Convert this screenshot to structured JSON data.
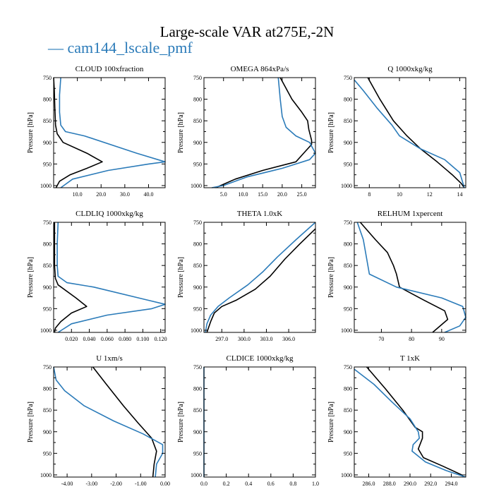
{
  "title": "Large-scale VAR at275E,-2N",
  "legend": {
    "prefix": "— ",
    "label": "cam144_lscale_pmf",
    "color": "#2B7BB9"
  },
  "colors": {
    "series_black": "#000000",
    "series_blue": "#2B7BB9"
  },
  "chart_data": [
    {
      "type": "line",
      "title": "CLOUD  100xfraction",
      "ylabel": "Pressure [hPa]",
      "xlim": [
        0,
        47
      ],
      "ylim": [
        1005,
        750
      ],
      "xticks": [
        10,
        20,
        30,
        40
      ],
      "xticklabels": [
        "10.0",
        "20.0",
        "30.0",
        "40.0"
      ],
      "yticks": [
        750,
        800,
        850,
        900,
        950,
        1000
      ],
      "yticklabels": [
        "750",
        "800",
        "850",
        "900",
        "950",
        "1000"
      ],
      "series": [
        {
          "color": "#000000",
          "points": [
            [
              0,
              750
            ],
            [
              0.3,
              780
            ],
            [
              0.5,
              820
            ],
            [
              0.8,
              860
            ],
            [
              1.5,
              880
            ],
            [
              4,
              900
            ],
            [
              14,
              925
            ],
            [
              20.5,
              945
            ],
            [
              14,
              960
            ],
            [
              7,
              975
            ],
            [
              2.5,
              990
            ],
            [
              1,
              1005
            ]
          ]
        },
        {
          "color": "#2B7BB9",
          "points": [
            [
              3,
              750
            ],
            [
              2.5,
              790
            ],
            [
              2.5,
              830
            ],
            [
              3,
              860
            ],
            [
              5,
              875
            ],
            [
              13,
              885
            ],
            [
              35,
              925
            ],
            [
              47,
              945
            ],
            [
              40,
              950
            ],
            [
              23,
              965
            ],
            [
              8,
              985
            ],
            [
              3,
              1005
            ]
          ]
        }
      ]
    },
    {
      "type": "line",
      "title": "OMEGA  864xPa/s",
      "ylabel": "Pressure [hPa]",
      "xlim": [
        0,
        28.5
      ],
      "ylim": [
        1005,
        750
      ],
      "xticks": [
        5,
        10,
        15,
        20,
        25
      ],
      "xticklabels": [
        "5.0",
        "10.0",
        "15.0",
        "20.0",
        "25.0"
      ],
      "yticks": [
        750,
        800,
        850,
        900,
        950,
        1000
      ],
      "yticklabels": [
        "750",
        "800",
        "850",
        "900",
        "950",
        "1000"
      ],
      "series": [
        {
          "color": "#000000",
          "points": [
            [
              19.5,
              750
            ],
            [
              21,
              775
            ],
            [
              22.5,
              800
            ],
            [
              25,
              830
            ],
            [
              26.5,
              850
            ],
            [
              26.8,
              870
            ],
            [
              27.5,
              895
            ],
            [
              27.5,
              905
            ],
            [
              26,
              920
            ],
            [
              23.5,
              945
            ],
            [
              15,
              965
            ],
            [
              8,
              985
            ],
            [
              3,
              1005
            ]
          ]
        },
        {
          "color": "#2B7BB9",
          "points": [
            [
              19,
              750
            ],
            [
              19.5,
              800
            ],
            [
              20,
              840
            ],
            [
              21,
              865
            ],
            [
              23.5,
              885
            ],
            [
              27,
              900
            ],
            [
              28.5,
              925
            ],
            [
              27,
              940
            ],
            [
              20,
              960
            ],
            [
              11,
              980
            ],
            [
              5,
              1000
            ],
            [
              2,
              1005
            ]
          ]
        }
      ]
    },
    {
      "type": "line",
      "title": "Q  1000xkg/kg",
      "ylabel": "Pressure [hPa]",
      "xlim": [
        7,
        14.4
      ],
      "ylim": [
        1005,
        750
      ],
      "xticks": [
        8,
        10,
        12,
        14
      ],
      "xticklabels": [
        "8",
        "10",
        "12",
        "14"
      ],
      "yticks": [
        750,
        800,
        850,
        900,
        950,
        1000
      ],
      "yticklabels": [
        "750",
        "800",
        "850",
        "900",
        "950",
        "1000"
      ],
      "series": [
        {
          "color": "#000000",
          "points": [
            [
              7.9,
              750
            ],
            [
              8.7,
              800
            ],
            [
              9.6,
              850
            ],
            [
              10.5,
              885
            ],
            [
              11.4,
              915
            ],
            [
              12.5,
              945
            ],
            [
              13.5,
              975
            ],
            [
              14.1,
              995
            ],
            [
              14.3,
              1005
            ]
          ]
        },
        {
          "color": "#2B7BB9",
          "points": [
            [
              7,
              755
            ],
            [
              7.6,
              780
            ],
            [
              8.5,
              820
            ],
            [
              9.5,
              860
            ],
            [
              10,
              885
            ],
            [
              11.4,
              915
            ],
            [
              13,
              940
            ],
            [
              14,
              970
            ],
            [
              14.3,
              1005
            ]
          ]
        }
      ]
    },
    {
      "type": "line",
      "title": "CLDLIQ  1000xkg/kg",
      "ylabel": "Pressure [hPa]",
      "xlim": [
        0,
        0.125
      ],
      "ylim": [
        1005,
        750
      ],
      "xticks": [
        0.02,
        0.04,
        0.06,
        0.08,
        0.1,
        0.12
      ],
      "xticklabels": [
        "0.020",
        "0.040",
        "0.060",
        "0.080",
        "0.100",
        "0.120"
      ],
      "yticks": [
        750,
        800,
        850,
        900,
        950,
        1000
      ],
      "yticklabels": [
        "750",
        "800",
        "850",
        "900",
        "950",
        "1000"
      ],
      "series": [
        {
          "color": "#000000",
          "points": [
            [
              0.001,
              750
            ],
            [
              0.001,
              800
            ],
            [
              0.001,
              850
            ],
            [
              0.002,
              880
            ],
            [
              0.005,
              895
            ],
            [
              0.025,
              925
            ],
            [
              0.037,
              945
            ],
            [
              0.02,
              960
            ],
            [
              0.008,
              980
            ],
            [
              0.002,
              995
            ],
            [
              0.001,
              1005
            ]
          ]
        },
        {
          "color": "#2B7BB9",
          "points": [
            [
              0.005,
              750
            ],
            [
              0.004,
              800
            ],
            [
              0.004,
              850
            ],
            [
              0.005,
              875
            ],
            [
              0.015,
              890
            ],
            [
              0.045,
              900
            ],
            [
              0.105,
              930
            ],
            [
              0.125,
              940
            ],
            [
              0.11,
              950
            ],
            [
              0.06,
              965
            ],
            [
              0.02,
              985
            ],
            [
              0.005,
              1005
            ]
          ]
        }
      ]
    },
    {
      "type": "line",
      "title": "THETA  1.0xK",
      "ylabel": "Pressure [hPa]",
      "xlim": [
        294.6,
        309.6
      ],
      "ylim": [
        1005,
        750
      ],
      "xticks": [
        297,
        300,
        303,
        306
      ],
      "xticklabels": [
        "297.0",
        "300.0",
        "303.0",
        "306.0"
      ],
      "yticks": [
        750,
        800,
        850,
        900,
        950,
        1000
      ],
      "yticklabels": [
        "750",
        "800",
        "850",
        "900",
        "950",
        "1000"
      ],
      "series": [
        {
          "color": "#000000",
          "points": [
            [
              309.6,
              765
            ],
            [
              307.5,
              800
            ],
            [
              305.5,
              835
            ],
            [
              303.5,
              875
            ],
            [
              301.5,
              905
            ],
            [
              299,
              930
            ],
            [
              297,
              945
            ],
            [
              296,
              960
            ],
            [
              295.5,
              980
            ],
            [
              295,
              1005
            ]
          ]
        },
        {
          "color": "#2B7BB9",
          "points": [
            [
              309.6,
              750
            ],
            [
              307,
              790
            ],
            [
              304.5,
              830
            ],
            [
              302.5,
              865
            ],
            [
              300.5,
              895
            ],
            [
              298,
              925
            ],
            [
              296.5,
              945
            ],
            [
              295.5,
              965
            ],
            [
              295,
              985
            ],
            [
              294.8,
              1005
            ]
          ]
        }
      ]
    },
    {
      "type": "line",
      "title": "RELHUM  1xpercent",
      "ylabel": "Pressure [hPa]",
      "xlim": [
        61,
        98
      ],
      "ylim": [
        1005,
        750
      ],
      "xticks": [
        70,
        80,
        90
      ],
      "xticklabels": [
        "70",
        "80",
        "90"
      ],
      "yticks": [
        750,
        800,
        850,
        900,
        950,
        1000
      ],
      "yticklabels": [
        "750",
        "800",
        "850",
        "900",
        "950",
        "1000"
      ],
      "series": [
        {
          "color": "#000000",
          "points": [
            [
              63,
              750
            ],
            [
              68,
              790
            ],
            [
              72,
              820
            ],
            [
              74,
              850
            ],
            [
              75,
              870
            ],
            [
              76,
              900
            ],
            [
              84,
              930
            ],
            [
              91,
              955
            ],
            [
              92,
              975
            ],
            [
              87,
              1005
            ]
          ]
        },
        {
          "color": "#2B7BB9",
          "points": [
            [
              62,
              750
            ],
            [
              64,
              790
            ],
            [
              65,
              830
            ],
            [
              66,
              870
            ],
            [
              75,
              900
            ],
            [
              90,
              925
            ],
            [
              97,
              945
            ],
            [
              98,
              970
            ],
            [
              96,
              990
            ],
            [
              91,
              1005
            ]
          ]
        }
      ]
    },
    {
      "type": "line",
      "title": "U  1xm/s",
      "ylabel": "Pressure [hPa]",
      "xlim": [
        -4.55,
        0
      ],
      "ylim": [
        1005,
        750
      ],
      "xticks": [
        -4,
        -3,
        -2,
        -1,
        0
      ],
      "xticklabels": [
        "-4.00",
        "-3.00",
        "-2.00",
        "-1.00",
        "0.00"
      ],
      "yticks": [
        750,
        800,
        850,
        900,
        950,
        1000
      ],
      "yticklabels": [
        "750",
        "800",
        "850",
        "900",
        "950",
        "1000"
      ],
      "series": [
        {
          "color": "#000000",
          "points": [
            [
              -2.95,
              750
            ],
            [
              -2.4,
              790
            ],
            [
              -1.7,
              840
            ],
            [
              -1.1,
              880
            ],
            [
              -0.55,
              915
            ],
            [
              -0.35,
              945
            ],
            [
              -0.45,
              975
            ],
            [
              -0.5,
              1005
            ]
          ]
        },
        {
          "color": "#2B7BB9",
          "points": [
            [
              -4.55,
              750
            ],
            [
              -4.45,
              780
            ],
            [
              -4.1,
              805
            ],
            [
              -3.3,
              840
            ],
            [
              -2.1,
              875
            ],
            [
              -0.9,
              905
            ],
            [
              -0.1,
              930
            ],
            [
              -0.1,
              950
            ],
            [
              -0.35,
              975
            ],
            [
              -0.4,
              1005
            ]
          ]
        }
      ]
    },
    {
      "type": "line",
      "title": "CLDICE  1000xkg/kg",
      "ylabel": "Pressure [hPa]",
      "xlim": [
        0,
        1
      ],
      "ylim": [
        1005,
        750
      ],
      "xticks": [
        0,
        0.2,
        0.4,
        0.6,
        0.8,
        1
      ],
      "xticklabels": [
        "0.0",
        "0.2",
        "0.4",
        "0.6",
        "0.8",
        "1.0"
      ],
      "yticks": [
        750,
        800,
        850,
        900,
        950,
        1000
      ],
      "yticklabels": [
        "750",
        "800",
        "850",
        "900",
        "950",
        "1000"
      ],
      "series": [
        {
          "color": "#2B7BB9",
          "points": [
            [
              0,
              750
            ],
            [
              0,
              1005
            ]
          ]
        }
      ]
    },
    {
      "type": "line",
      "title": "T  1xK",
      "ylabel": "Pressure [hPa]",
      "xlim": [
        284.6,
        295.4
      ],
      "ylim": [
        1005,
        750
      ],
      "xticks": [
        286,
        288,
        290,
        292,
        294
      ],
      "xticklabels": [
        "286.0",
        "288.0",
        "290.0",
        "292.0",
        "294.0"
      ],
      "yticks": [
        750,
        800,
        850,
        900,
        950,
        1000
      ],
      "yticklabels": [
        "750",
        "800",
        "850",
        "900",
        "950",
        "1000"
      ],
      "series": [
        {
          "color": "#000000",
          "points": [
            [
              285.8,
              750
            ],
            [
              287.6,
              800
            ],
            [
              289.3,
              850
            ],
            [
              290.5,
              890
            ],
            [
              291.2,
              900
            ],
            [
              291.2,
              915
            ],
            [
              290.8,
              940
            ],
            [
              291.3,
              960
            ],
            [
              293.2,
              980
            ],
            [
              295,
              1000
            ],
            [
              295.2,
              1005
            ]
          ]
        },
        {
          "color": "#2B7BB9",
          "points": [
            [
              284.6,
              755
            ],
            [
              286.5,
              790
            ],
            [
              288.2,
              830
            ],
            [
              290,
              870
            ],
            [
              290.8,
              900
            ],
            [
              290.9,
              915
            ],
            [
              290.3,
              930
            ],
            [
              290.2,
              945
            ],
            [
              291.5,
              970
            ],
            [
              293.5,
              990
            ],
            [
              295.4,
              1005
            ]
          ]
        }
      ]
    }
  ]
}
